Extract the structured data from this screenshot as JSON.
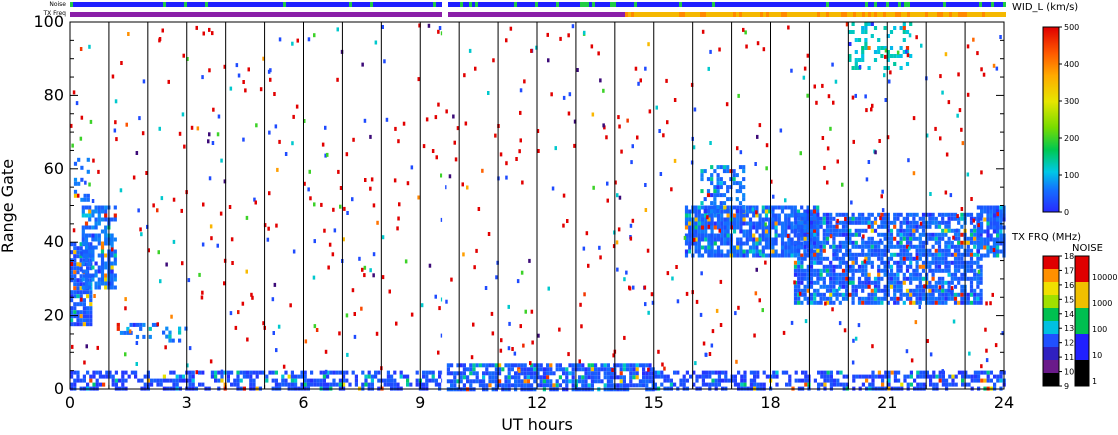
{
  "chart_data": {
    "type": "scatter",
    "subtype": "range-time-velocity-width",
    "xlabel": "UT hours",
    "ylabel": "Range Gate",
    "xlim": [
      0,
      24
    ],
    "ylim": [
      0,
      100
    ],
    "xticks": [
      0,
      3,
      6,
      9,
      12,
      15,
      18,
      21,
      24
    ],
    "yticks": [
      0,
      20,
      40,
      60,
      80,
      100
    ],
    "grid": "vertical lines at each UT hour",
    "data_gap_ut": 9.6,
    "top_bars": {
      "noise_label": "Noise",
      "freq_label": "TX Freq",
      "noise_color": "#2020ff",
      "noise_highlight_color": "#22cc44",
      "freq_color_before": "#8a1fa8",
      "freq_color_after": "#f5b800",
      "freq_change_ut": 14.2
    },
    "width_colorbar": {
      "title": "WID_L (km/s)",
      "ticks": [
        0,
        100,
        200,
        300,
        400,
        500
      ],
      "range": [
        0,
        500
      ]
    },
    "freq_colorbar": {
      "title": "TX FRQ (MHz)",
      "ticks": [
        "9",
        "10",
        "11",
        "12",
        "13",
        "14",
        "15",
        "16",
        "17",
        "18"
      ]
    },
    "noise_colorbar": {
      "title": "NOISE",
      "ticks": [
        "1",
        "10",
        "100",
        "1000",
        "10000"
      ]
    },
    "regions": [
      {
        "ut": [
          0.0,
          0.5
        ],
        "gate": [
          18,
          40
        ],
        "density": 0.8,
        "width_kms": 40
      },
      {
        "ut": [
          0.3,
          1.2
        ],
        "gate": [
          28,
          50
        ],
        "density": 0.7,
        "width_kms": 60
      },
      {
        "ut": [
          0.1,
          0.5
        ],
        "gate": [
          52,
          63
        ],
        "density": 0.4,
        "width_kms": 60
      },
      {
        "ut": [
          1.2,
          2.2
        ],
        "gate": [
          14,
          18
        ],
        "density": 0.35,
        "width_kms": 60
      },
      {
        "ut": [
          2.2,
          3.0
        ],
        "gate": [
          13,
          17
        ],
        "density": 0.3,
        "width_kms": 60
      },
      {
        "ut": [
          0.0,
          9.6
        ],
        "gate": [
          0,
          5
        ],
        "density": 0.55,
        "width_kms": 30
      },
      {
        "ut": [
          9.6,
          15.0
        ],
        "gate": [
          0,
          7
        ],
        "density": 0.75,
        "width_kms": 40
      },
      {
        "ut": [
          15.0,
          24.0
        ],
        "gate": [
          0,
          5
        ],
        "density": 0.55,
        "width_kms": 30
      },
      {
        "ut": [
          15.8,
          19.2
        ],
        "gate": [
          36,
          50
        ],
        "density": 0.85,
        "width_kms": 50
      },
      {
        "ut": [
          16.2,
          17.3
        ],
        "gate": [
          49,
          61
        ],
        "density": 0.5,
        "width_kms": 60
      },
      {
        "ut": [
          18.6,
          23.4
        ],
        "gate": [
          24,
          48
        ],
        "density": 0.75,
        "width_kms": 50
      },
      {
        "ut": [
          23.3,
          24.0
        ],
        "gate": [
          36,
          50
        ],
        "density": 0.8,
        "width_kms": 50
      },
      {
        "ut": [
          20.0,
          21.6
        ],
        "gate": [
          88,
          100
        ],
        "density": 0.3,
        "width_kms": 120
      }
    ],
    "isolated_scatter": {
      "ut": [
        0,
        24
      ],
      "gate": [
        5,
        100
      ],
      "count": 650,
      "width_kms": [
        350,
        500
      ]
    }
  }
}
